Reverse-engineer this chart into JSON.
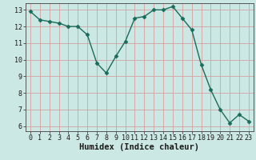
{
  "x": [
    0,
    1,
    2,
    3,
    4,
    5,
    6,
    7,
    8,
    9,
    10,
    11,
    12,
    13,
    14,
    15,
    16,
    17,
    18,
    19,
    20,
    21,
    22,
    23
  ],
  "y": [
    12.9,
    12.4,
    12.3,
    12.2,
    12.0,
    12.0,
    11.5,
    9.8,
    9.2,
    10.2,
    11.1,
    12.5,
    12.6,
    13.0,
    13.0,
    13.2,
    12.5,
    11.8,
    9.7,
    8.2,
    7.0,
    6.2,
    6.7,
    6.3
  ],
  "line_color": "#1a6b5a",
  "marker": "D",
  "markersize": 2.5,
  "linewidth": 1.0,
  "bg_color": "#cce8e4",
  "grid_color": "#d4a0a0",
  "xlabel": "Humidex (Indice chaleur)",
  "xlabel_fontsize": 7.5,
  "tick_fontsize": 6.0,
  "ylim": [
    5.7,
    13.4
  ],
  "xlim": [
    -0.5,
    23.5
  ],
  "yticks": [
    6,
    7,
    8,
    9,
    10,
    11,
    12,
    13
  ],
  "xticks": [
    0,
    1,
    2,
    3,
    4,
    5,
    6,
    7,
    8,
    9,
    10,
    11,
    12,
    13,
    14,
    15,
    16,
    17,
    18,
    19,
    20,
    21,
    22,
    23
  ]
}
